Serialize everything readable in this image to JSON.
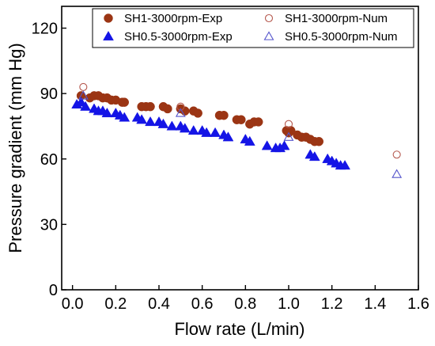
{
  "chart_data": {
    "type": "scatter",
    "title": "",
    "xlabel": "Flow rate (L/min)",
    "ylabel": "Pressure gradient (mm Hg)",
    "xlim": [
      -0.05,
      1.6
    ],
    "ylim": [
      0,
      130
    ],
    "xticks": [
      "0.0",
      "0.2",
      "0.4",
      "0.6",
      "0.8",
      "1.0",
      "1.2",
      "1.4",
      "1.6"
    ],
    "xtick_values": [
      0,
      0.2,
      0.4,
      0.6,
      0.8,
      1.0,
      1.2,
      1.4,
      1.6
    ],
    "yticks": [
      "0",
      "30",
      "60",
      "90",
      "120"
    ],
    "ytick_values": [
      0,
      30,
      60,
      90,
      120
    ],
    "grid": false,
    "legend_position": "top-right",
    "series": [
      {
        "name": "SH1-3000rpm-Exp",
        "marker": "filled-circle",
        "color": "#9b3514",
        "x": [
          0.04,
          0.08,
          0.1,
          0.12,
          0.14,
          0.16,
          0.18,
          0.2,
          0.23,
          0.24,
          0.32,
          0.34,
          0.36,
          0.42,
          0.44,
          0.5,
          0.52,
          0.56,
          0.58,
          0.68,
          0.7,
          0.76,
          0.78,
          0.82,
          0.84,
          0.86,
          0.99,
          1.0,
          1.01,
          1.04,
          1.06,
          1.08,
          1.1,
          1.12,
          1.14
        ],
        "y": [
          89,
          88,
          89,
          89,
          88,
          88,
          87,
          87,
          86,
          86,
          84,
          84,
          84,
          84,
          83,
          83,
          82,
          82,
          81,
          80,
          80,
          78,
          78,
          76,
          77,
          77,
          73,
          72,
          73,
          71,
          70,
          70,
          69,
          68,
          68
        ]
      },
      {
        "name": "SH0.5-3000rpm-Exp",
        "marker": "filled-triangle",
        "color": "#1414e6",
        "x": [
          0.02,
          0.04,
          0.06,
          0.1,
          0.12,
          0.14,
          0.16,
          0.2,
          0.22,
          0.24,
          0.3,
          0.32,
          0.36,
          0.4,
          0.42,
          0.46,
          0.5,
          0.52,
          0.56,
          0.6,
          0.62,
          0.66,
          0.7,
          0.72,
          0.8,
          0.82,
          0.9,
          0.94,
          0.96,
          0.98,
          1.1,
          1.12,
          1.18,
          1.2,
          1.22,
          1.24,
          1.26
        ],
        "y": [
          85,
          86,
          84,
          83,
          82,
          82,
          81,
          81,
          80,
          79,
          79,
          78,
          77,
          77,
          76,
          75,
          75,
          74,
          73,
          73,
          72,
          72,
          71,
          70,
          69,
          68,
          66,
          65,
          65,
          66,
          62,
          61,
          60,
          59,
          58,
          57,
          57
        ]
      },
      {
        "name": "SH1-3000rpm-Num",
        "marker": "open-circle",
        "color": "#b5584e",
        "x": [
          0.05,
          0.5,
          1.0,
          1.5
        ],
        "y": [
          93,
          84,
          76,
          62
        ]
      },
      {
        "name": "SH0.5-3000rpm-Num",
        "marker": "open-triangle",
        "color": "#5555cc",
        "x": [
          0.05,
          0.5,
          1.0,
          1.5
        ],
        "y": [
          89,
          81,
          70,
          53
        ]
      }
    ]
  }
}
